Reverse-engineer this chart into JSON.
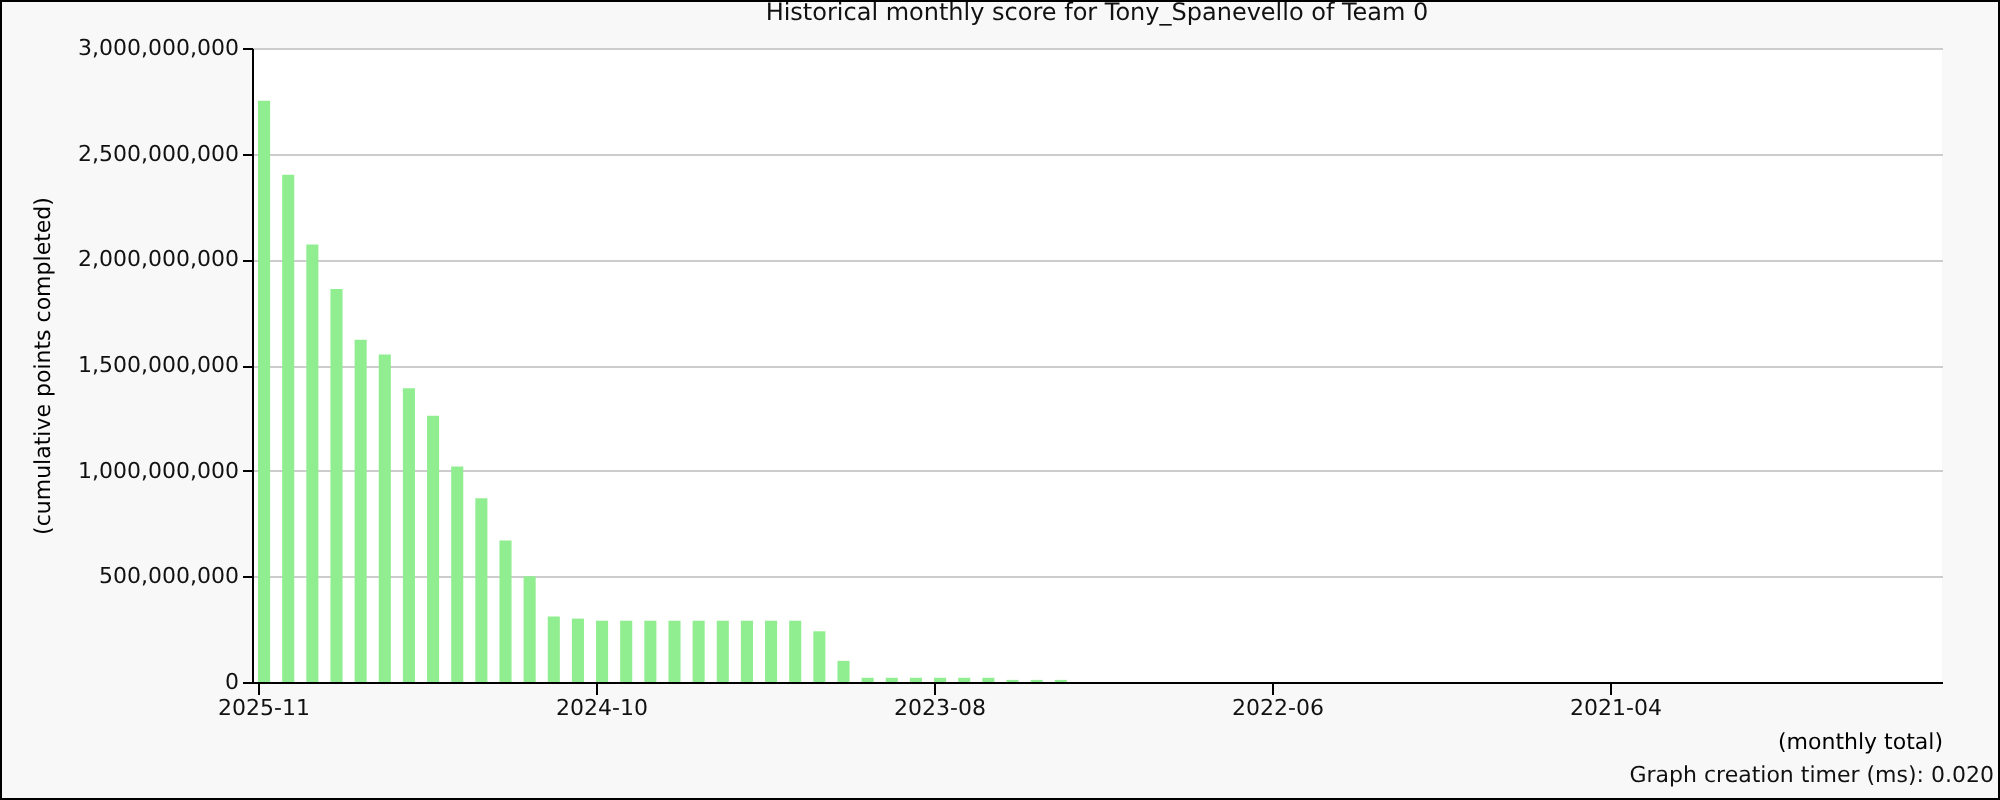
{
  "chart_data": {
    "type": "bar",
    "title": "Historical monthly score for Tony_Spanevello of Team 0",
    "ylabel": "(cumulative points completed)",
    "xlabel": "(monthly total)",
    "annotations": [
      "Graph creation timer (ms): 0.020"
    ],
    "categories": [
      "2025-11",
      null,
      null,
      null,
      null,
      null,
      null,
      null,
      null,
      null,
      null,
      null,
      null,
      null,
      "2024-10",
      null,
      null,
      null,
      null,
      null,
      null,
      null,
      null,
      null,
      null,
      null,
      null,
      null,
      "2023-08",
      null,
      null,
      null,
      null,
      null,
      null,
      null,
      null,
      null,
      null,
      null,
      null,
      null,
      "2022-06",
      null,
      null,
      null,
      null,
      null,
      null,
      null,
      null,
      null,
      null,
      null,
      null,
      null,
      "2021-04",
      null,
      null,
      null,
      null,
      null,
      null,
      null,
      null,
      null,
      null,
      null,
      null,
      null
    ],
    "values": [
      2750000000,
      2400000000,
      2070000000,
      1860000000,
      1620000000,
      1550000000,
      1390000000,
      1260000000,
      1020000000,
      870000000,
      670000000,
      500000000,
      310000000,
      300000000,
      290000000,
      290000000,
      290000000,
      290000000,
      290000000,
      290000000,
      290000000,
      290000000,
      290000000,
      240000000,
      100000000,
      20000000,
      20000000,
      20000000,
      20000000,
      20000000,
      20000000,
      10000000,
      10000000,
      10000000,
      null,
      null,
      null,
      null,
      null,
      null,
      null,
      null,
      null,
      null,
      null,
      null,
      null,
      null,
      null,
      null,
      null,
      null,
      null,
      null,
      null,
      null,
      null,
      null,
      null,
      null,
      null,
      null,
      null,
      null,
      null,
      null,
      null,
      null,
      null,
      null
    ],
    "color": "#90ee90",
    "ylim": [
      0,
      3000000000
    ],
    "yticks": [
      0,
      {
        "value": 500000000,
        "label": "500,000,000"
      },
      {
        "value": 1000000000,
        "label": "1,000,000,000"
      },
      {
        "value": 1500000000,
        "label": "1,500,000,000"
      },
      {
        "value": 2000000000,
        "label": "2,000,000,000"
      },
      {
        "value": 2500000000,
        "label": "2,500,000,000"
      },
      {
        "value": 3000000000,
        "label": "3,000,000,000"
      }
    ],
    "grid": "y"
  }
}
